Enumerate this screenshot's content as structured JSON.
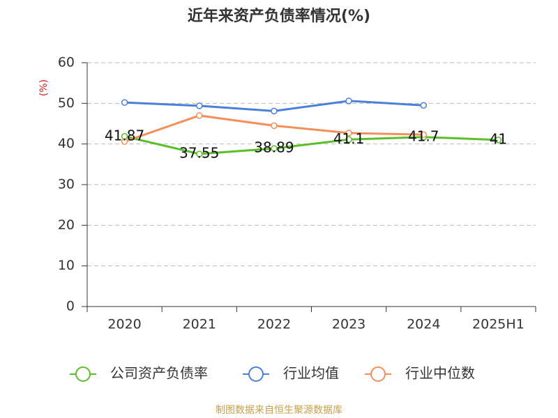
{
  "chart_data": {
    "type": "line",
    "title": "近年来资产负债率情况(%)",
    "y_label": "(%)",
    "categories": [
      "2020",
      "2021",
      "2022",
      "2023",
      "2024",
      "2025H1"
    ],
    "series": [
      {
        "name": "公司资产负债率",
        "color": "#5cbf2a",
        "values": [
          41.87,
          37.55,
          38.89,
          41.1,
          41.7,
          41
        ],
        "show_labels": true
      },
      {
        "name": "行业均值",
        "color": "#4a7fdc",
        "values": [
          50.2,
          49.4,
          48.1,
          50.6,
          49.5,
          null
        ]
      },
      {
        "name": "行业中位数",
        "color": "#f58f5a",
        "values": [
          40.6,
          47.0,
          44.5,
          42.7,
          42.3,
          null
        ]
      }
    ],
    "ylim": [
      0,
      60
    ],
    "yticks": [
      0,
      10,
      20,
      30,
      40,
      50,
      60
    ],
    "grid": true,
    "legend": "bottom",
    "source": "制图数据来自恒生聚源数据库"
  }
}
